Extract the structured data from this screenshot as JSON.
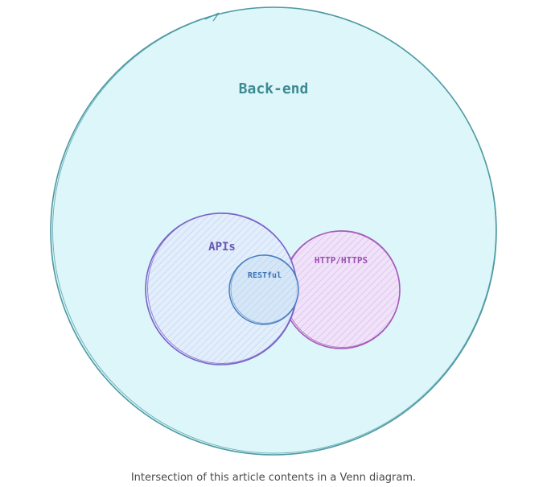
{
  "diagram": {
    "labels": {
      "backend": "Back-end",
      "apis": "APIs",
      "restful": "RESTful",
      "http": "HTTP/HTTPS"
    },
    "colors": {
      "backend_fill": "#dcf6f9",
      "backend_stroke": "#4e9aa3",
      "backend_text": "#3d8a94",
      "apis_fill": "#e2ecfb",
      "apis_stroke": "#7a62c9",
      "apis_text": "#6a56b4",
      "restful_fill": "#d6e7f8",
      "restful_stroke": "#4a7fc0",
      "restful_text": "#3f73b5",
      "http_fill": "#eedcf6",
      "http_stroke": "#a55ab9",
      "http_text": "#9b4fb0"
    }
  },
  "caption": "Intersection of this article contents in a Venn diagram."
}
